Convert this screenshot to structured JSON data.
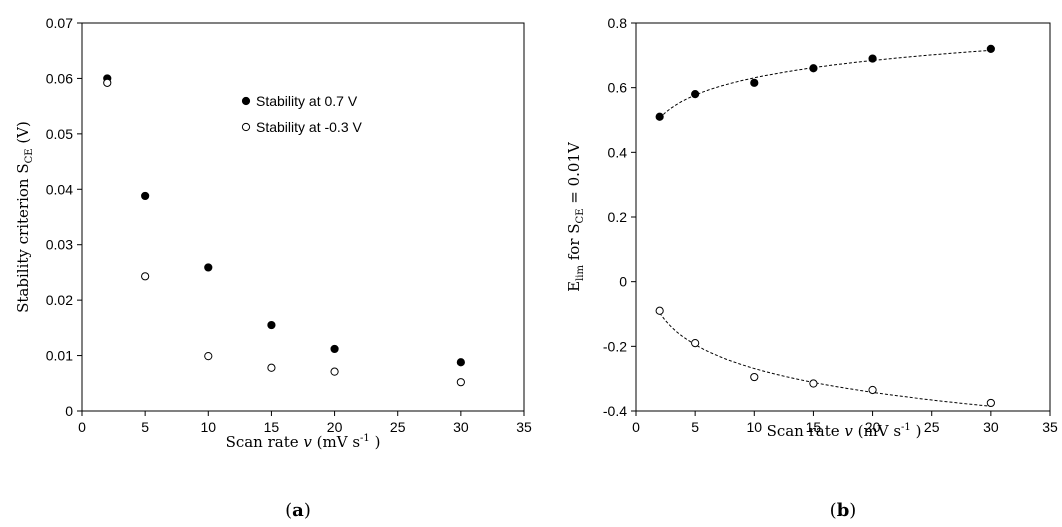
{
  "chart_data": [
    {
      "id": "a",
      "type": "scatter",
      "panel_label": "a",
      "xlabel": {
        "prefix": "Scan rate ",
        "var": "v",
        "unit": " (mV s",
        "exp": "-1",
        "close": " )"
      },
      "ylabel": {
        "text": "Stability criterion S",
        "sub": "CE",
        "unit": " (V)"
      },
      "xlim": [
        0,
        35
      ],
      "ylim": [
        0,
        0.07
      ],
      "xticks": [
        0,
        5,
        10,
        15,
        20,
        25,
        30,
        35
      ],
      "yticks": [
        "0",
        "0.01",
        "0.02",
        "0.03",
        "0.04",
        "0.05",
        "0.06",
        "0.07"
      ],
      "legend": {
        "placement": "top-center",
        "entries": [
          "Stability at 0.7 V",
          "Stability at -0.3 V"
        ]
      },
      "series": [
        {
          "name": "Stability at 0.7 V",
          "marker": "filled",
          "x": [
            2,
            5,
            10,
            15,
            20,
            30
          ],
          "y": [
            0.06,
            0.0388,
            0.0259,
            0.0155,
            0.0112,
            0.0088
          ]
        },
        {
          "name": "Stability at -0.3 V",
          "marker": "open",
          "x": [
            2,
            5,
            10,
            15,
            20,
            30
          ],
          "y": [
            0.0592,
            0.0243,
            0.0099,
            0.0078,
            0.0071,
            0.0052
          ]
        }
      ]
    },
    {
      "id": "b",
      "type": "scatter",
      "panel_label": "b",
      "xlabel": {
        "prefix": "Scan rate ",
        "var": "v",
        "unit": " (mV s",
        "exp": "-1",
        "close": " )"
      },
      "ylabel": {
        "text": "E",
        "sub": "lim",
        "mid": " for S",
        "sub2": "CE",
        "tail": " = 0.01V"
      },
      "xlim": [
        0,
        35
      ],
      "ylim": [
        -0.4,
        0.8
      ],
      "xticks": [
        0,
        5,
        10,
        15,
        20,
        25,
        30,
        35
      ],
      "yticks": [
        "-0.4",
        "-0.2",
        "0",
        "0.2",
        "0.4",
        "0.6",
        "0.8"
      ],
      "trendlines": "dashed",
      "series": [
        {
          "marker": "filled",
          "x": [
            2,
            5,
            10,
            15,
            20,
            30
          ],
          "y": [
            0.51,
            0.58,
            0.615,
            0.66,
            0.69,
            0.72
          ]
        },
        {
          "marker": "open",
          "x": [
            2,
            5,
            10,
            15,
            20,
            30
          ],
          "y": [
            -0.09,
            -0.19,
            -0.295,
            -0.315,
            -0.335,
            -0.375
          ]
        }
      ]
    }
  ]
}
